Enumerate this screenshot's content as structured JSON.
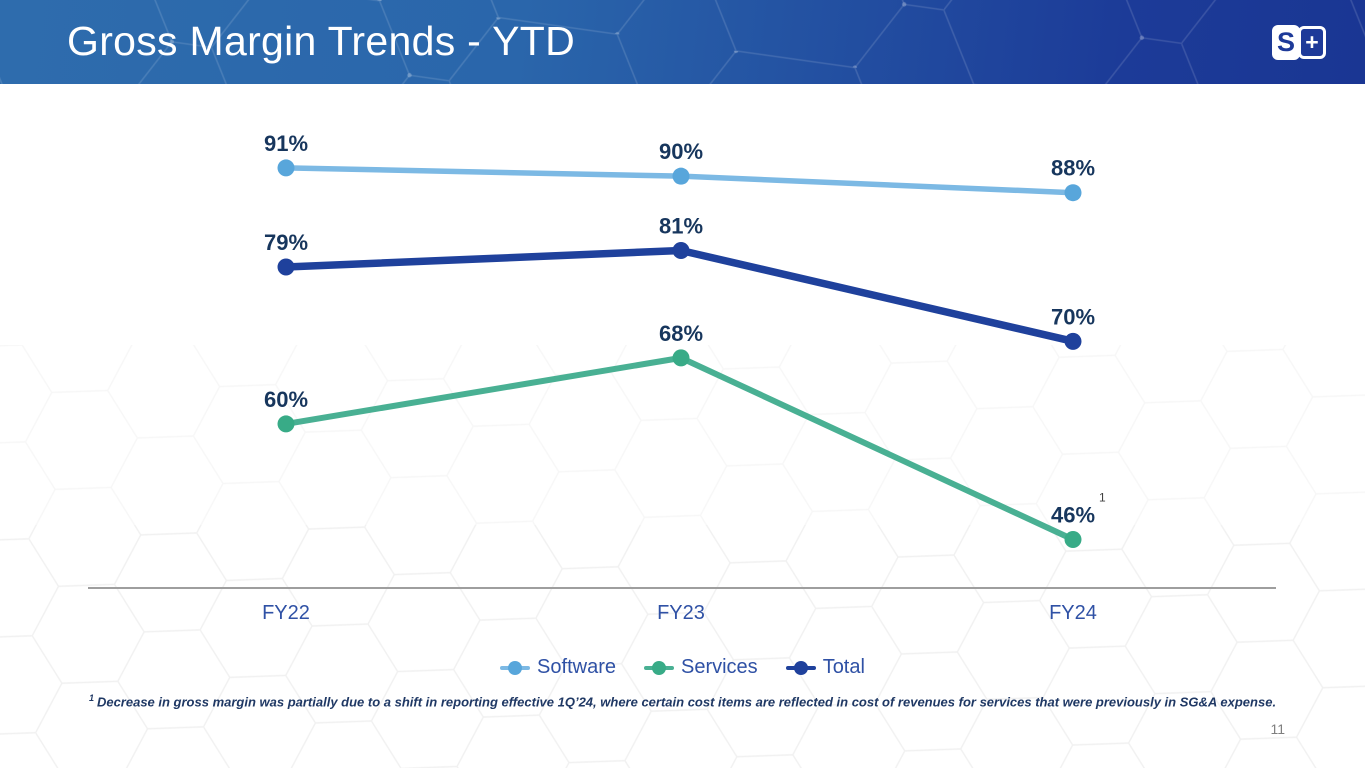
{
  "slide": {
    "title": "Gross Margin Trends - YTD",
    "page_number": "11",
    "footnote_sup": "1",
    "footnote_text": "Decrease in gross margin was partially due to a shift in reporting effective 1Q’24, where certain cost items are reflected in cost of revenues for services that were previously in SG&A expense."
  },
  "logo": {
    "left_glyph": "S",
    "right_glyph": "+"
  },
  "colors": {
    "header_left": "#2E6CAD",
    "header_right": "#1C3B98",
    "logo_navy": "#1E3A99",
    "data_label_navy": "#17365D",
    "sup_color": "#404040",
    "axis_text_blue": "#2F51A5",
    "axis_line_gray": "#9E9E9E",
    "footnote_navy": "#1F3864",
    "page_number_gray": "#7F7F7F"
  },
  "chart_data": {
    "type": "line",
    "title": "Gross Margin Trends - YTD",
    "categories": [
      "FY22",
      "FY23",
      "FY24"
    ],
    "series": [
      {
        "name": "Software",
        "values": [
          91,
          90,
          88
        ],
        "labels": [
          "91%",
          "90%",
          "88%"
        ],
        "color": "#7CB9E4",
        "marker_color": "#58A6DB"
      },
      {
        "name": "Services",
        "values": [
          60,
          68,
          46
        ],
        "labels": [
          "60%",
          "68%",
          "46%"
        ],
        "label_sups": [
          "",
          "",
          "1"
        ],
        "color": "#49B093",
        "marker_color": "#38AB87"
      },
      {
        "name": "Total",
        "values": [
          79,
          81,
          70
        ],
        "labels": [
          "79%",
          "81%",
          "70%"
        ],
        "color": "#1F419C",
        "marker_color": "#1F419C"
      }
    ],
    "ylim": [
      40,
      100
    ],
    "grid": false,
    "legend_position": "bottom",
    "data_labels": true
  }
}
